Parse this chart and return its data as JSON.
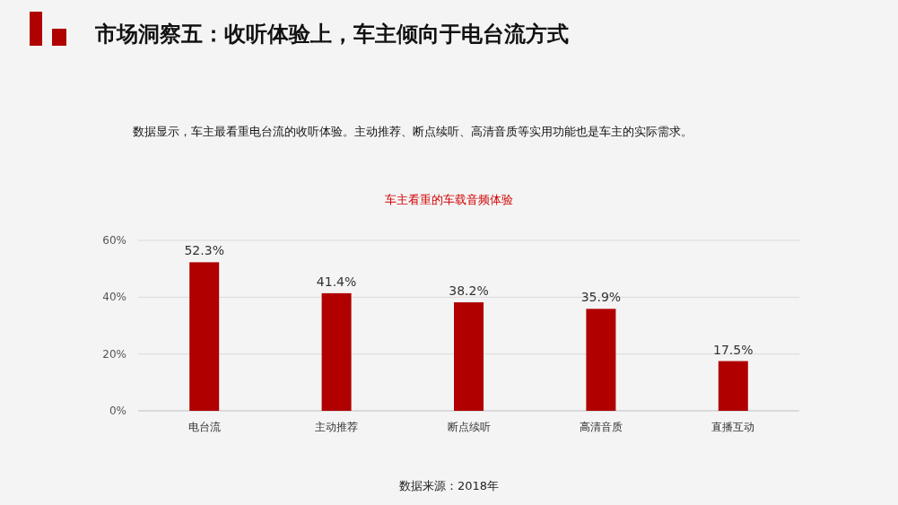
{
  "chart_data": {
    "type": "bar",
    "title": "市场洞察五：收听体验上，车主倾向于电台流方式",
    "subtitle": "车主看重的车载音频体验",
    "categories": [
      "电台流",
      "主动推荐",
      "断点续听",
      "高清音质",
      "直播互动"
    ],
    "values": [
      52.3,
      41.4,
      38.2,
      35.9,
      17.5
    ],
    "color": "#b00000",
    "value_labels": [
      "52.3%",
      "41.4%",
      "38.2%",
      "35.9%",
      "17.5%"
    ],
    "ylim": [
      0,
      60
    ],
    "yticks": [
      {
        "value": 0,
        "label": "0%"
      },
      {
        "value": 20,
        "label": "20%"
      },
      {
        "value": 40,
        "label": "40%"
      },
      {
        "value": 60,
        "label": "60%"
      }
    ],
    "grid": "y",
    "annotations": [
      "数据显示，车主最看重电台流的收听体验。主动推荐、断点续听、高清音质等实用功能也是车主的实际需求。",
      "数据来源：2018年"
    ]
  }
}
